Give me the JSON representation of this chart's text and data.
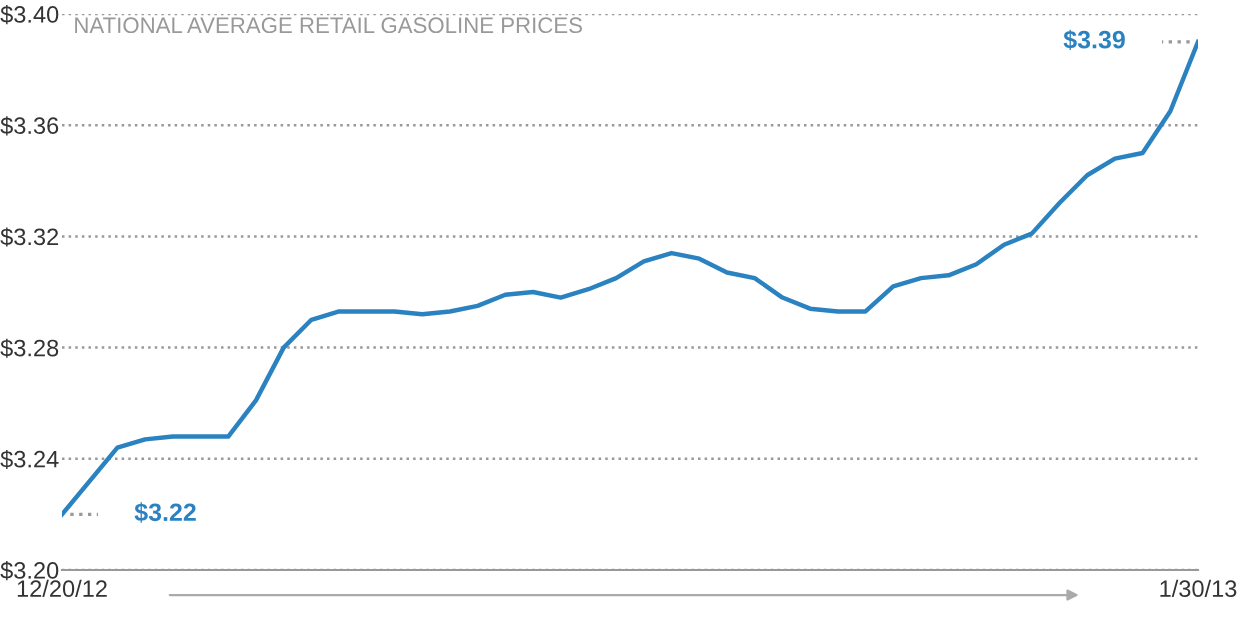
{
  "chart_data": {
    "type": "line",
    "title": "NATIONAL AVERAGE RETAIL GASOLINE PRICES",
    "x": [
      "2012-12-20",
      "2012-12-22",
      "2012-12-23",
      "2012-12-24",
      "2012-12-25",
      "2012-12-26",
      "2012-12-27",
      "2012-12-28",
      "2012-12-29",
      "2012-12-30",
      "2012-12-31",
      "2013-01-01",
      "2013-01-02",
      "2013-01-03",
      "2013-01-04",
      "2013-01-05",
      "2013-01-06",
      "2013-01-07",
      "2013-01-08",
      "2013-01-09",
      "2013-01-10",
      "2013-01-11",
      "2013-01-12",
      "2013-01-13",
      "2013-01-14",
      "2013-01-15",
      "2013-01-16",
      "2013-01-17",
      "2013-01-18",
      "2013-01-19",
      "2013-01-20",
      "2013-01-21",
      "2013-01-22",
      "2013-01-23",
      "2013-01-24",
      "2013-01-25",
      "2013-01-26",
      "2013-01-27",
      "2013-01-28",
      "2013-01-29",
      "2013-01-30"
    ],
    "series": [
      {
        "color": "#2b82c0",
        "values": [
          3.22,
          3.244,
          3.247,
          3.248,
          3.248,
          3.248,
          3.261,
          3.28,
          3.29,
          3.293,
          3.293,
          3.293,
          3.292,
          3.293,
          3.295,
          3.299,
          3.3,
          3.298,
          3.301,
          3.305,
          3.311,
          3.314,
          3.312,
          3.307,
          3.305,
          3.298,
          3.294,
          3.293,
          3.293,
          3.302,
          3.305,
          3.306,
          3.31,
          3.317,
          3.321,
          3.332,
          3.342,
          3.348,
          3.35,
          3.365,
          3.39
        ]
      }
    ],
    "xlim": [
      "2012-12-20",
      "2013-01-30"
    ],
    "xticks": [
      {
        "value": "2012-12-20",
        "label": "12/20/12"
      },
      {
        "value": "2013-01-30",
        "label": "1/30/13"
      }
    ],
    "ylim": [
      3.2,
      3.4
    ],
    "yticks": [
      {
        "value": 3.2,
        "label": "$3.20"
      },
      {
        "value": 3.24,
        "label": "$3.24"
      },
      {
        "value": 3.28,
        "label": "$3.28"
      },
      {
        "value": 3.32,
        "label": "$3.32"
      },
      {
        "value": 3.36,
        "label": "$3.36"
      },
      {
        "value": 3.4,
        "label": "$3.40"
      }
    ],
    "annotations": [
      {
        "text": "$3.22",
        "x": "2012-12-20",
        "y": 3.22
      },
      {
        "text": "$3.39",
        "x": "2013-01-30",
        "y": 3.39
      }
    ],
    "grid": "y",
    "marker": "none",
    "line_style": "solid"
  }
}
